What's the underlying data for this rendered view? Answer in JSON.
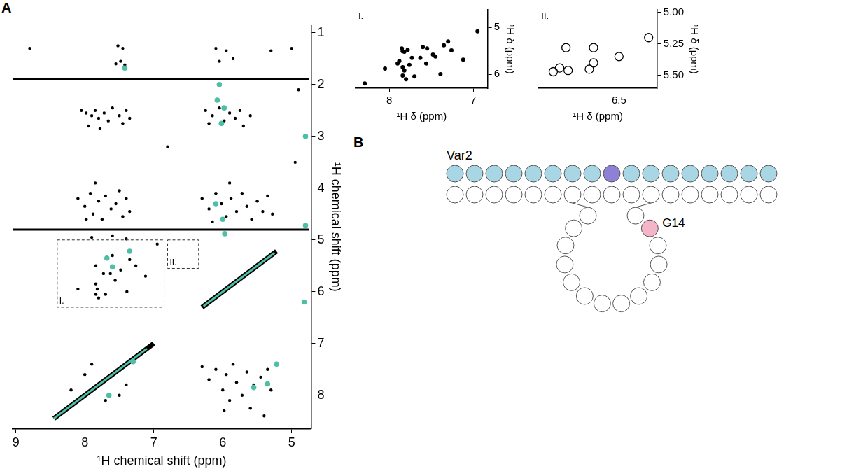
{
  "panel_labels": [
    "A",
    "B"
  ],
  "chart_data": [
    {
      "type": "scatter",
      "title": null,
      "x_label": "¹H chemical shift (ppm)",
      "y_label": "¹H chemical shift (ppm)",
      "xlim": [
        9.05,
        4.72
      ],
      "ylim": [
        8.65,
        0.85
      ],
      "xticks": [
        9,
        8,
        7,
        6,
        5
      ],
      "yticks": [
        1,
        2,
        3,
        4,
        5,
        6,
        7,
        8
      ],
      "grid": false,
      "annotations": [
        {
          "label": "I.",
          "x": [
            8.4,
            6.85
          ],
          "y": [
            5.0,
            6.3
          ]
        },
        {
          "label": "II.",
          "x": [
            6.8,
            6.35
          ],
          "y": [
            5.0,
            5.55
          ]
        }
      ],
      "series": [
        {
          "type": "line",
          "color": "#000000",
          "line_style": "band",
          "x": [
            5.22,
            6.3
          ],
          "y": [
            5.22,
            6.3
          ]
        },
        {
          "type": "line",
          "color": "#000000",
          "line_style": "band",
          "x": [
            7.0,
            8.45
          ],
          "y": [
            7.0,
            8.45
          ]
        },
        {
          "type": "line",
          "color": "#000000",
          "line_style": "solid",
          "x": [
            9.05,
            4.75
          ],
          "y": [
            1.9,
            1.9
          ]
        },
        {
          "type": "line",
          "color": "#000000",
          "line_style": "solid",
          "x": [
            9.05,
            4.75
          ],
          "y": [
            4.8,
            4.8
          ]
        },
        {
          "type": "scatter",
          "color": "#000000",
          "marker": "dot",
          "x": [
            7.52,
            7.45,
            7.48,
            7.42,
            7.55,
            8.05,
            7.98,
            7.9,
            7.85,
            7.8,
            7.72,
            7.66,
            7.6,
            7.5,
            7.45,
            7.4,
            7.35,
            7.95,
            7.78,
            8.1,
            8.0,
            7.92,
            7.88,
            7.8,
            7.75,
            7.7,
            7.62,
            7.55,
            7.5,
            7.45,
            7.4,
            7.35,
            7.98,
            7.85,
            7.9,
            7.6,
            7.4,
            7.84,
            7.73,
            7.63,
            7.56,
            7.48,
            7.35,
            7.26,
            7.84,
            7.82,
            7.84,
            7.8,
            7.7,
            7.39,
            7.12,
            6.95,
            8.1,
            7.6,
            8.2,
            8.0,
            7.7,
            7.5,
            7.9,
            7.4,
            6.1,
            5.95,
            6.05,
            5.85,
            5.3,
            6.25,
            6.15,
            6.05,
            5.98,
            5.9,
            5.82,
            5.75,
            5.7,
            5.6,
            6.2,
            6.3,
            6.2,
            6.1,
            6.02,
            5.95,
            5.88,
            5.8,
            5.72,
            5.65,
            5.58,
            5.5,
            5.42,
            5.35,
            5.28,
            6.15,
            5.9,
            6.3,
            6.2,
            6.1,
            6.0,
            5.95,
            5.9,
            5.85,
            5.8,
            5.72,
            5.65,
            5.6,
            5.55,
            5.45,
            5.4,
            5.35,
            5.3,
            5.98,
            8.8,
            5.0,
            4.9,
            4.95,
            6.8
          ],
          "y": [
            1.25,
            1.3,
            1.55,
            1.62,
            1.6,
            2.5,
            2.55,
            2.6,
            2.5,
            2.65,
            2.55,
            2.7,
            2.45,
            2.6,
            2.75,
            2.5,
            2.65,
            2.8,
            2.85,
            4.2,
            4.35,
            4.1,
            4.5,
            4.25,
            4.6,
            4.15,
            4.4,
            4.3,
            4.05,
            4.55,
            4.2,
            4.45,
            4.6,
            3.9,
            4.95,
            4.92,
            4.98,
            5.5,
            5.65,
            5.65,
            5.78,
            5.58,
            5.38,
            5.5,
            5.85,
            5.95,
            6.05,
            6.12,
            6.05,
            6.0,
            5.7,
            5.08,
            5.95,
            5.3,
            7.9,
            7.6,
            8.1,
            8.0,
            7.4,
            7.8,
            1.3,
            1.35,
            1.55,
            1.5,
            1.35,
            2.5,
            2.6,
            2.45,
            2.7,
            2.55,
            2.65,
            2.5,
            2.8,
            2.6,
            2.75,
            4.2,
            4.4,
            4.1,
            4.3,
            4.55,
            4.2,
            4.45,
            4.1,
            4.35,
            4.6,
            4.25,
            4.45,
            4.15,
            4.5,
            4.65,
            3.9,
            7.45,
            7.7,
            7.5,
            7.9,
            7.6,
            8.1,
            7.4,
            7.75,
            8.0,
            7.55,
            8.25,
            7.8,
            7.65,
            8.4,
            7.5,
            7.9,
            8.3,
            1.3,
            1.3,
            2.1,
            3.5,
            3.2
          ]
        },
        {
          "type": "line",
          "color": "#4dbfa6",
          "line_style": "solid",
          "x": [
            5.25,
            6.28
          ],
          "y": [
            5.25,
            6.28
          ]
        },
        {
          "type": "line",
          "color": "#4dbfa6",
          "line_style": "solid",
          "x": [
            7.1,
            8.45
          ],
          "y": [
            7.1,
            8.45
          ]
        },
        {
          "type": "scatter",
          "color": "#4dbfa6",
          "marker": "circle",
          "x": [
            7.42,
            6.05,
            6.08,
            5.98,
            6.02,
            6.1,
            6.0,
            5.97,
            7.6,
            7.68,
            7.35,
            4.8,
            4.8,
            4.82,
            5.55,
            5.35,
            5.22,
            7.65,
            7.3
          ],
          "y": [
            1.68,
            2.0,
            2.3,
            2.45,
            2.75,
            4.3,
            4.6,
            4.88,
            5.52,
            5.35,
            5.22,
            3.0,
            4.72,
            6.2,
            7.85,
            7.78,
            7.4,
            8.0,
            7.35
          ]
        }
      ]
    },
    {
      "type": "scatter",
      "title": "I.",
      "x_label": "¹H δ (ppm)",
      "y_label": "¹H δ (ppm)",
      "xlim": [
        8.4,
        6.83
      ],
      "ylim": [
        6.3,
        4.62
      ],
      "xticks": [
        8,
        7
      ],
      "yticks": [
        5,
        6
      ],
      "grid": false,
      "series": [
        {
          "type": "scatter",
          "color": "#000000",
          "marker": "circle",
          "x": [
            8.29,
            7.9,
            7.84,
            7.82,
            7.73,
            7.63,
            7.56,
            7.48,
            7.35,
            7.26,
            7.84,
            7.82,
            7.84,
            7.8,
            7.7,
            7.39,
            7.12,
            6.95,
            7.85,
            7.78,
            7.6,
            7.55,
            7.76,
            7.88,
            8.05,
            7.45,
            7.3
          ],
          "y": [
            6.2,
            5.77,
            5.51,
            5.52,
            5.65,
            5.65,
            5.77,
            5.58,
            5.38,
            5.49,
            5.85,
            5.92,
            6.03,
            6.11,
            6.05,
            6.0,
            5.69,
            5.08,
            5.45,
            5.48,
            5.42,
            5.45,
            5.8,
            5.72,
            5.88,
            5.62,
            5.3
          ]
        }
      ]
    },
    {
      "type": "scatter",
      "title": "II.",
      "x_label": "¹H δ (ppm)",
      "y_label": "¹H δ (ppm)",
      "xlim": [
        6.88,
        6.32
      ],
      "ylim": [
        5.6,
        4.98
      ],
      "xticks": [
        6.5
      ],
      "yticks": [
        {
          "value": 5,
          "label": "5.00"
        },
        {
          "value": 5.25,
          "label": "5.25"
        },
        {
          "value": 5.5,
          "label": "5.50"
        }
      ],
      "grid": false,
      "series": [
        {
          "type": "scatter",
          "color": "#000000",
          "marker": "circle_open",
          "x": [
            6.81,
            6.74,
            6.64,
            6.62,
            6.75,
            6.62,
            6.5,
            6.36,
            6.78
          ],
          "y": [
            5.47,
            5.46,
            5.45,
            5.4,
            5.28,
            5.28,
            5.35,
            5.2,
            5.44
          ]
        }
      ]
    }
  ],
  "diagram": {
    "label": "Var2",
    "top_row": [
      "#a9d6e5",
      "#a9d6e5",
      "#a9d6e5",
      "#a9d6e5",
      "#a9d6e5",
      "#a9d6e5",
      "#a9d6e5",
      "#a9d6e5",
      "#8f7fd6",
      "#a9d6e5",
      "#a9d6e5",
      "#a9d6e5",
      "#a9d6e5",
      "#a9d6e5",
      "#a9d6e5",
      "#a9d6e5",
      "#a9d6e5"
    ],
    "bottom_row": [
      "#ffffff",
      "#ffffff",
      "#ffffff",
      "#ffffff",
      "#ffffff",
      "#ffffff",
      "#ffffff",
      "#ffffff",
      "#ffffff",
      "#ffffff",
      "#ffffff",
      "#ffffff",
      "#ffffff",
      "#ffffff",
      "#ffffff",
      "#ffffff",
      "#ffffff"
    ],
    "loop": [
      "#ffffff",
      "#ffffff",
      "#ffffff",
      "#ffffff",
      "#ffffff",
      "#ffffff",
      "#ffffff",
      "#ffffff",
      "#ffffff",
      "#ffffff",
      "#ffffff",
      "#ffffff",
      "#f5b5c8",
      "#ffffff"
    ],
    "loop_labels": [
      null,
      null,
      null,
      null,
      null,
      null,
      null,
      null,
      null,
      null,
      null,
      null,
      "G14",
      null
    ]
  }
}
